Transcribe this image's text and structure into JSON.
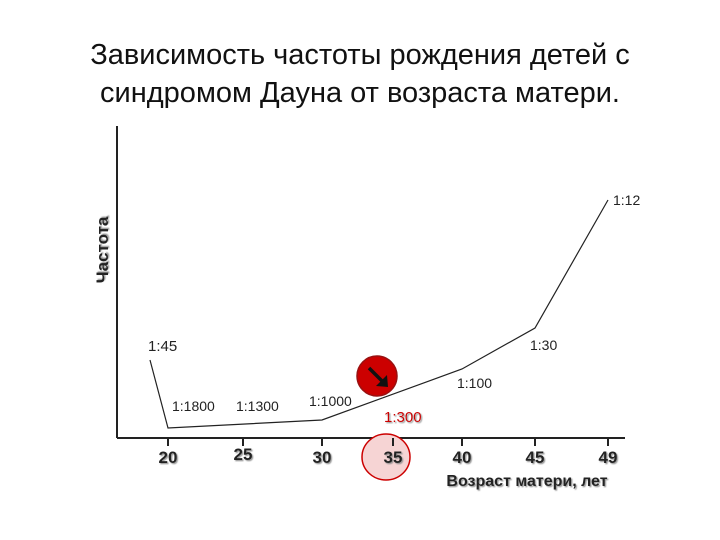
{
  "title_line1": "Зависимость частоты рождения детей с",
  "title_line2": "синдромом Дауна от  возраста матери.",
  "chart_data": {
    "type": "line",
    "title": "Зависимость частоты рождения детей с синдромом Дауна от  возраста матери.",
    "xlabel": "Возраст матери, лет",
    "ylabel": "Частота",
    "x_ticks": [
      20,
      25,
      30,
      35,
      40,
      45,
      49
    ],
    "xlim": [
      20,
      49
    ],
    "grid": false,
    "series": [
      {
        "x": [
          19,
          20,
          30,
          40,
          45,
          49
        ],
        "ratio_labels": [
          "1:45",
          "1:1800",
          "1:1000",
          "1:100",
          "1:30",
          "1:12"
        ]
      }
    ],
    "annotations": [
      {
        "text": "1:1800",
        "at_age": 20
      },
      {
        "text": "1:1300",
        "at_age": 25
      },
      {
        "text": "1:1000",
        "at_age": 30
      },
      {
        "text": "1:300",
        "at_age": 35,
        "highlight": true,
        "color": "#cc0000"
      },
      {
        "text": "1:100",
        "at_age": 40
      },
      {
        "text": "1:30",
        "at_age": 45
      },
      {
        "text": "1:12",
        "at_age": 49
      },
      {
        "text": "1:45",
        "at_age": 19
      }
    ],
    "highlight_age": 35,
    "colors": {
      "line": "#111111",
      "highlight": "#cc0000",
      "highlight_fill": "#f6d4d4"
    }
  }
}
